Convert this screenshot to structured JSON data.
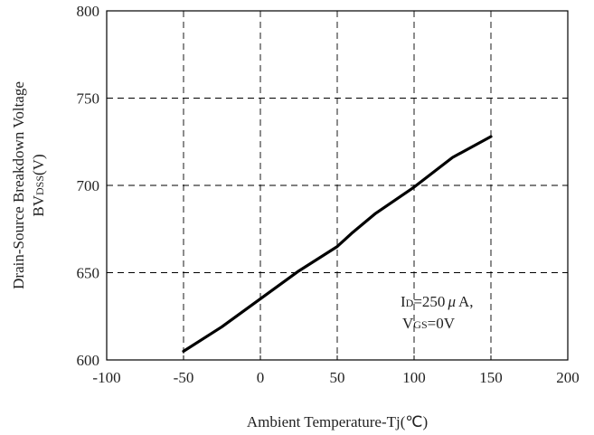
{
  "chart_data": {
    "type": "line",
    "title": "",
    "xlabel": "Ambient Temperature-Tj(℃)",
    "ylabel": {
      "line1": "Drain-Source Breakdown Voltage",
      "line2": "BVDSS(V)"
    },
    "xlim": [
      -100,
      200
    ],
    "ylim": [
      600,
      800
    ],
    "x_ticks": [
      -100,
      -50,
      0,
      50,
      100,
      150,
      200
    ],
    "y_ticks": [
      600,
      650,
      700,
      750,
      800
    ],
    "grid": true,
    "series": [
      {
        "x": [
          -50,
          -25,
          0,
          25,
          50,
          60,
          75,
          100,
          125,
          150
        ],
        "y": [
          605,
          619,
          635,
          651,
          665,
          673,
          684,
          699,
          716,
          728
        ]
      }
    ],
    "annotation": {
      "line1": "ID=250μA,",
      "line2": "VGS=0V"
    }
  }
}
